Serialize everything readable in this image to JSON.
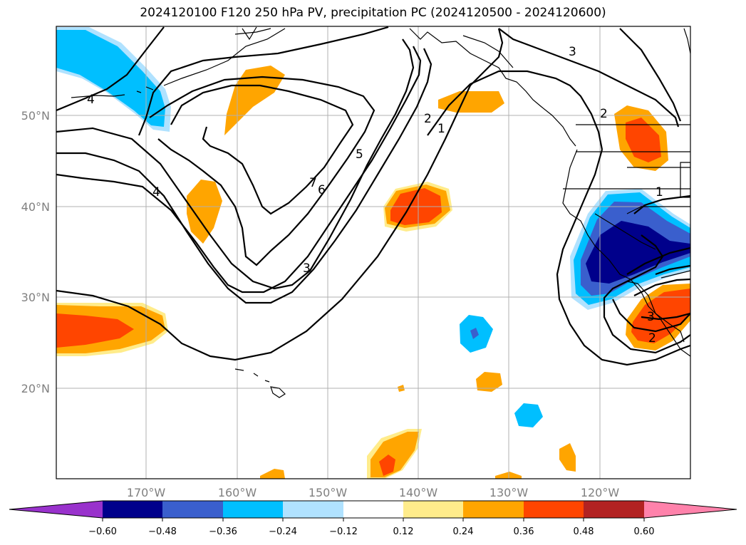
{
  "title": "2024120100 F120 250 hPa PV, precipitation PC (2024120500 - 2024120600)",
  "map": {
    "lon_labels": [
      "170°W",
      "160°W",
      "150°W",
      "140°W",
      "130°W",
      "120°W"
    ],
    "lat_labels": [
      "50°N",
      "40°N",
      "30°N",
      "20°N"
    ],
    "contour_labels": [
      {
        "id": "4-west",
        "text": "4"
      },
      {
        "id": "4-mid",
        "text": "4"
      },
      {
        "id": "7",
        "text": "7"
      },
      {
        "id": "6",
        "text": "6"
      },
      {
        "id": "5",
        "text": "5"
      },
      {
        "id": "3-mid",
        "text": "3"
      },
      {
        "id": "2-trough",
        "text": "2"
      },
      {
        "id": "1-trough",
        "text": "1"
      },
      {
        "id": "3-ne",
        "text": "3"
      },
      {
        "id": "2-coast",
        "text": "2"
      },
      {
        "id": "1-coast",
        "text": "1"
      },
      {
        "id": "3-sw",
        "text": "3"
      },
      {
        "id": "2-sw",
        "text": "2"
      }
    ]
  },
  "colorbar": {
    "ticks": [
      "−0.60",
      "−0.48",
      "−0.36",
      "−0.24",
      "−0.12",
      "0.12",
      "0.24",
      "0.36",
      "0.48",
      "0.60"
    ],
    "colors": [
      "#9932cc",
      "#00008b",
      "#3a5fcd",
      "#00bfff",
      "#b0e2ff",
      "#ffffff",
      "#ffec8b",
      "#ffa500",
      "#ff4500",
      "#b22222",
      "#ff82ab"
    ]
  }
}
